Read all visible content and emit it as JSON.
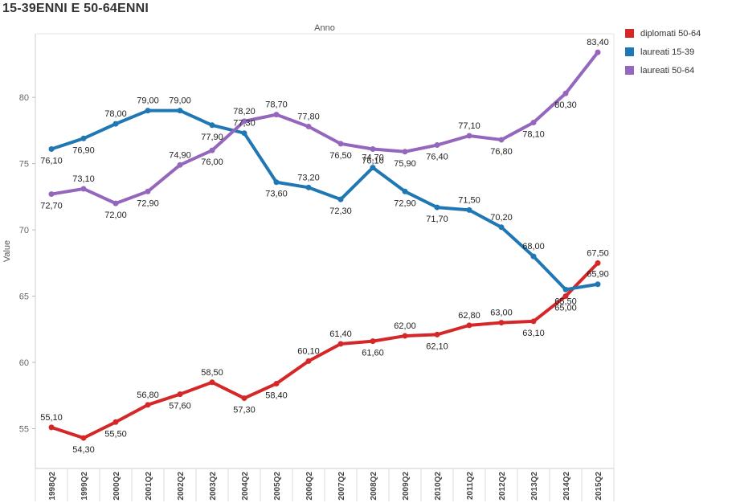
{
  "title": "15-39ENNI E 50-64ENNI",
  "chart_data": {
    "type": "line",
    "xlabel": "Anno",
    "ylabel": "Value",
    "ylim": [
      52,
      84.8
    ],
    "yticks": [
      55,
      60,
      65,
      70,
      75,
      80
    ],
    "categories": [
      "1998Q2",
      "1999Q2",
      "2000Q2",
      "2001Q2",
      "2002Q2",
      "2003Q2",
      "2004Q2",
      "2005Q2",
      "2006Q2",
      "2007Q2",
      "2008Q2",
      "2009Q2",
      "2010Q2",
      "2011Q2",
      "2012Q2",
      "2013Q2",
      "2014Q2",
      "2015Q2"
    ],
    "series": [
      {
        "name": "diplomati 50-64",
        "color": "#d62728",
        "values": [
          55.1,
          54.3,
          55.5,
          56.8,
          57.6,
          58.5,
          57.3,
          58.4,
          60.1,
          61.4,
          61.6,
          62.0,
          62.1,
          62.8,
          63.0,
          63.1,
          65.0,
          67.5
        ],
        "labels": [
          "55,10",
          "54,30",
          "55,50",
          "56,80",
          "57,60",
          "58,50",
          "57,30",
          "58,40",
          "60,10",
          "61,40",
          "61,60",
          "62,00",
          "62,10",
          "62,80",
          "63,00",
          "63,10",
          "65,00",
          "67,50"
        ]
      },
      {
        "name": "laureati 15-39",
        "color": "#1f77b4",
        "values": [
          76.1,
          76.9,
          78.0,
          79.0,
          79.0,
          77.9,
          77.3,
          73.6,
          73.2,
          72.3,
          74.7,
          72.9,
          71.7,
          71.5,
          70.2,
          68.0,
          65.5,
          65.9
        ],
        "labels": [
          "76,10",
          "76,90",
          "78,00",
          "79,00",
          "79,00",
          "77,90",
          "77,30",
          "73,60",
          "73,20",
          "72,30",
          "74,70",
          "72,90",
          "71,70",
          "71,50",
          "70,20",
          "68,00",
          "65,50",
          "65,90"
        ]
      },
      {
        "name": "laureati 50-64",
        "color": "#9467bd",
        "values": [
          72.7,
          73.1,
          72.0,
          72.9,
          74.9,
          76.0,
          78.2,
          78.7,
          77.8,
          76.5,
          76.1,
          75.9,
          76.4,
          77.1,
          76.8,
          78.1,
          80.3,
          83.4
        ],
        "labels": [
          "72,70",
          "73,10",
          "72,00",
          "72,90",
          "74,90",
          "76,00",
          "78,20",
          "78,70",
          "77,80",
          "76,50",
          "76,10",
          "75,90",
          "76,40",
          "77,10",
          "76,80",
          "78,10",
          "80,30",
          "83,40"
        ]
      }
    ],
    "legend_position": "right"
  }
}
